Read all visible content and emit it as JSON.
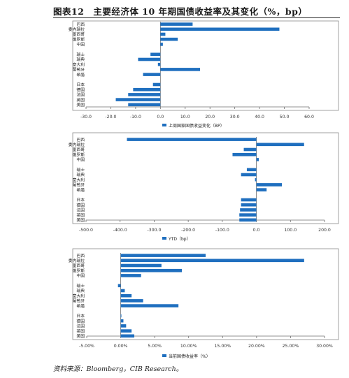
{
  "figure": {
    "title": "图表12　主要经济体 10 年期国债收益率及其变化（%，bp）",
    "source": "资料来源：Bloomberg，CIB Research。"
  },
  "colors": {
    "bar": "#1f6fbf",
    "axis": "#6e6e6e",
    "grid": "#b7b7b7",
    "frame": "#8a8a8a"
  },
  "chart_data": [
    {
      "type": "bar",
      "orientation": "horizontal",
      "categories": [
        "巴西",
        "委内瑞拉",
        "墨西哥",
        "俄罗斯",
        "中国",
        "",
        "瑞士",
        "瑞典",
        "意大利",
        "葡萄牙",
        "希腊",
        "",
        "日本",
        "德国",
        "法国",
        "英国",
        "美国"
      ],
      "series": [
        {
          "name": "上周国家国债收益变化（BP）",
          "values": [
            13,
            48,
            2,
            7,
            1,
            null,
            -4,
            -9,
            -1,
            16,
            -7,
            null,
            -3,
            -11,
            -13,
            -18,
            -13
          ]
        }
      ],
      "xlim": [
        -30,
        60
      ],
      "xticks": [
        -30,
        -20,
        -10,
        0,
        10,
        20,
        30,
        40,
        50,
        60
      ],
      "xtick_labels": [
        "-30.0",
        "-20.0",
        "-10.0",
        "0.0",
        "10.0",
        "20.0",
        "30.0",
        "40.0",
        "50.0",
        "60.0"
      ],
      "legend": "bottom",
      "grid": false
    },
    {
      "type": "bar",
      "orientation": "horizontal",
      "categories": [
        "巴西",
        "委内瑞拉",
        "墨西哥",
        "俄罗斯",
        "中国",
        "",
        "瑞士",
        "瑞典",
        "意大利",
        "葡萄牙",
        "希腊",
        "",
        "日本",
        "德国",
        "法国",
        "英国",
        "美国"
      ],
      "series": [
        {
          "name": "YTD（bp）",
          "values": [
            -380,
            140,
            -37,
            -70,
            7,
            null,
            -28,
            -45,
            -4,
            75,
            30,
            null,
            -45,
            -45,
            -48,
            -50,
            -50
          ]
        }
      ],
      "xlim": [
        -500,
        200
      ],
      "xticks": [
        -500,
        -400,
        -300,
        -200,
        -100,
        0,
        100,
        200
      ],
      "xtick_labels": [
        "-500.0",
        "-400.0",
        "-300.0",
        "-200.0",
        "-100.0",
        "0.0",
        "100.0",
        "200.0"
      ],
      "legend": "bottom",
      "grid": false
    },
    {
      "type": "bar",
      "orientation": "horizontal",
      "categories": [
        "巴西",
        "委内瑞拉",
        "墨西哥",
        "俄罗斯",
        "中国",
        "",
        "瑞士",
        "瑞典",
        "意大利",
        "葡萄牙",
        "希腊",
        "",
        "日本",
        "德国",
        "法国",
        "英国",
        "美国"
      ],
      "series": [
        {
          "name": "当前国债收益率（%）",
          "values": [
            12.5,
            27,
            6,
            9,
            3,
            null,
            -0.4,
            0.6,
            1.6,
            3.3,
            8.5,
            null,
            0.1,
            0.4,
            0.8,
            1.6,
            2
          ]
        }
      ],
      "xlim": [
        -5,
        30
      ],
      "xticks": [
        -5,
        0,
        5,
        10,
        15,
        20,
        25,
        30
      ],
      "xtick_labels": [
        "-5.00%",
        "0.00%",
        "5.00%",
        "10.00%",
        "15.00%",
        "20.00%",
        "25.00%",
        "30.00%"
      ],
      "legend": "bottom",
      "grid": false
    }
  ]
}
